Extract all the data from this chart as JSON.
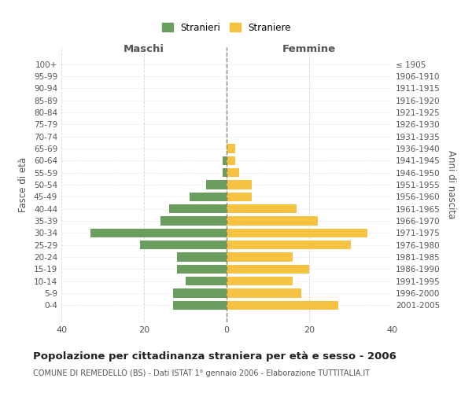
{
  "age_groups": [
    "100+",
    "95-99",
    "90-94",
    "85-89",
    "80-84",
    "75-79",
    "70-74",
    "65-69",
    "60-64",
    "55-59",
    "50-54",
    "45-49",
    "40-44",
    "35-39",
    "30-34",
    "25-29",
    "20-24",
    "15-19",
    "10-14",
    "5-9",
    "0-4"
  ],
  "birth_years": [
    "≤ 1905",
    "1906-1910",
    "1911-1915",
    "1916-1920",
    "1921-1925",
    "1926-1930",
    "1931-1935",
    "1936-1940",
    "1941-1945",
    "1946-1950",
    "1951-1955",
    "1956-1960",
    "1961-1965",
    "1966-1970",
    "1971-1975",
    "1976-1980",
    "1981-1985",
    "1986-1990",
    "1991-1995",
    "1996-2000",
    "2001-2005"
  ],
  "maschi": [
    0,
    0,
    0,
    0,
    0,
    0,
    0,
    0,
    1,
    1,
    5,
    9,
    14,
    16,
    33,
    21,
    12,
    12,
    10,
    13,
    13
  ],
  "femmine": [
    0,
    0,
    0,
    0,
    0,
    0,
    0,
    2,
    2,
    3,
    6,
    6,
    17,
    22,
    34,
    30,
    16,
    20,
    16,
    18,
    27
  ],
  "maschi_color": "#6a9e5f",
  "femmine_color": "#f5c242",
  "xlim": 40,
  "title": "Popolazione per cittadinanza straniera per età e sesso - 2006",
  "subtitle": "COMUNE DI REMEDELLO (BS) - Dati ISTAT 1° gennaio 2006 - Elaborazione TUTTITALIA.IT",
  "xlabel_left": "Maschi",
  "xlabel_right": "Femmine",
  "ylabel_left": "Fasce di età",
  "ylabel_right": "Anni di nascita",
  "legend_maschi": "Stranieri",
  "legend_femmine": "Straniere",
  "background_color": "#ffffff",
  "grid_color": "#cccccc"
}
